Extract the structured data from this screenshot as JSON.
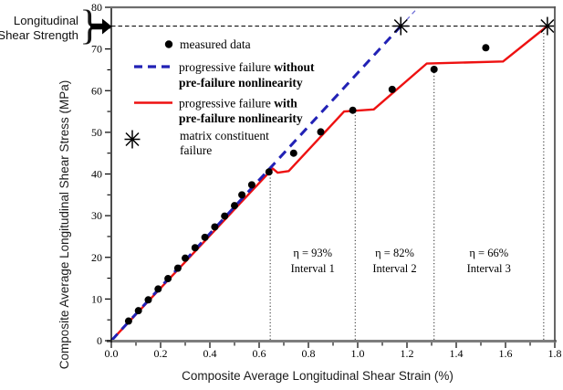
{
  "annotation": {
    "line1": "Longitudinal",
    "line2": "Shear Strength",
    "brace": "}"
  },
  "legend": {
    "measured": "measured data",
    "without_1a": "progressive failure ",
    "without_1b": "without",
    "without_2": "pre-failure nonlinearity",
    "with_1a": "progressive failure ",
    "with_1b": "with",
    "with_2": "pre-failure nonlinearity",
    "matrix_1": "matrix constituent",
    "matrix_2": "failure"
  },
  "chart_data": {
    "type": "line",
    "xlabel": "Composite Average Longitudinal Shear Strain (%)",
    "ylabel": "Composite Average Longitudinal Shear Stress (MPa)",
    "xlim": [
      0,
      1.8
    ],
    "ylim": [
      0,
      80
    ],
    "x_major_ticks": [
      0.0,
      0.2,
      0.4,
      0.6,
      0.8,
      1.0,
      1.2,
      1.4,
      1.6,
      1.8
    ],
    "x_minor_step": 0.1,
    "y_major_ticks": [
      0,
      10,
      20,
      30,
      40,
      50,
      60,
      70,
      80
    ],
    "y_minor_step": 5,
    "shear_strength_MPa": 75.5,
    "colors": {
      "without_line": "#2121b5",
      "without_extension": "#7070d8",
      "with_line": "#ee1111",
      "measured": "#000000",
      "marker": "#000000"
    },
    "series": [
      {
        "name": "measured data",
        "type": "scatter",
        "points": [
          [
            0.07,
            4.7
          ],
          [
            0.11,
            7.2
          ],
          [
            0.15,
            9.8
          ],
          [
            0.19,
            12.4
          ],
          [
            0.23,
            14.9
          ],
          [
            0.27,
            17.4
          ],
          [
            0.3,
            19.8
          ],
          [
            0.34,
            22.3
          ],
          [
            0.38,
            24.8
          ],
          [
            0.42,
            27.3
          ],
          [
            0.46,
            29.9
          ],
          [
            0.5,
            32.4
          ],
          [
            0.53,
            35.0
          ],
          [
            0.57,
            37.4
          ],
          [
            0.64,
            40.5
          ],
          [
            0.74,
            45.0
          ],
          [
            0.85,
            50.1
          ],
          [
            0.98,
            55.3
          ],
          [
            1.14,
            60.3
          ],
          [
            1.31,
            65.1
          ],
          [
            1.52,
            70.3
          ]
        ]
      },
      {
        "name": "progressive failure without pre-failure nonlinearity",
        "type": "line",
        "style": "dashed",
        "points": [
          [
            0,
            0
          ],
          [
            1.175,
            75.5
          ]
        ],
        "extension": [
          [
            1.175,
            75.5
          ],
          [
            1.246,
            80
          ]
        ]
      },
      {
        "name": "progressive failure with pre-failure nonlinearity",
        "type": "line",
        "style": "solid",
        "points": [
          [
            0,
            0
          ],
          [
            0.655,
            41.3
          ],
          [
            0.675,
            40.3
          ],
          [
            0.72,
            40.7
          ],
          [
            0.945,
            55.0
          ],
          [
            1.065,
            55.5
          ],
          [
            1.28,
            66.5
          ],
          [
            1.59,
            67.0
          ],
          [
            1.77,
            75.5
          ]
        ]
      },
      {
        "name": "matrix constituent failure",
        "type": "marker",
        "marker": "asterisk",
        "points": [
          [
            1.175,
            75.5
          ],
          [
            1.77,
            75.5
          ]
        ]
      }
    ],
    "interval_boundaries": [
      {
        "x": 0.645,
        "top": 40.3
      },
      {
        "x": 0.99,
        "top": 55.0
      },
      {
        "x": 1.31,
        "top": 66.4
      },
      {
        "x": 1.755,
        "top": 74.0
      }
    ],
    "intervals": [
      {
        "eta": "η = 93%",
        "label": "Interval 1"
      },
      {
        "eta": "η = 82%",
        "label": "Interval 2"
      },
      {
        "eta": "η = 66%",
        "label": "Interval 3"
      }
    ]
  }
}
